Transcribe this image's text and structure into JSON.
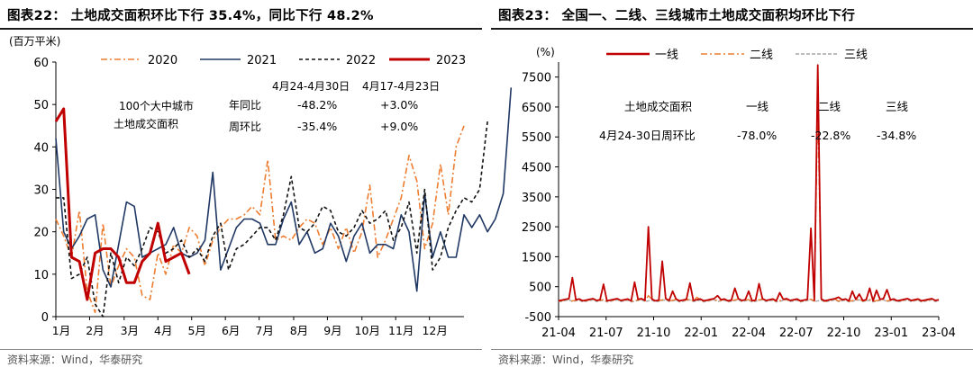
{
  "left": {
    "title": "图表22：  土地成交面积环比下行 35.4%，同比下行 48.2%",
    "source": "资料来源：Wind，华泰研究",
    "chart_data": {
      "type": "line",
      "ylabel": "(百万平米)",
      "ylim": [
        0,
        60
      ],
      "yticks": [
        0,
        10,
        20,
        30,
        40,
        50,
        60
      ],
      "xlim": [
        1,
        53
      ],
      "month_labels": [
        "1月",
        "2月",
        "3月",
        "4月",
        "5月",
        "6月",
        "7月",
        "8月",
        "9月",
        "10月",
        "11月",
        "12月"
      ],
      "month_weeks": [
        1,
        5.3,
        9.7,
        14,
        18.3,
        22.6,
        26.9,
        31.3,
        35.6,
        40,
        44.3,
        48.6
      ],
      "legend": [
        "2020",
        "2021",
        "2022",
        "2023"
      ],
      "series": [
        {
          "name": "2020",
          "color": "#ED7D31",
          "dash": "7,3,2,3",
          "width": 1.6,
          "values": [
            23,
            19,
            14,
            25,
            6,
            1,
            22,
            7,
            12,
            16,
            14,
            5,
            4,
            15,
            10,
            17,
            15,
            21,
            19,
            12,
            18,
            21,
            23,
            23,
            24,
            26,
            24,
            37,
            18,
            19,
            18,
            21,
            23,
            22,
            17,
            21,
            16,
            21,
            15,
            20,
            31,
            14,
            18,
            23,
            28,
            38,
            32,
            16,
            22,
            36,
            24,
            40,
            45
          ]
        },
        {
          "name": "2021",
          "color": "#203864",
          "dash": "",
          "width": 1.6,
          "values": [
            42,
            20,
            16,
            19,
            23,
            24,
            11,
            7,
            17,
            27,
            26,
            14,
            15,
            16,
            17,
            21,
            15,
            14,
            15,
            18,
            34,
            11,
            16,
            21,
            23,
            23,
            22,
            17,
            17,
            23,
            27,
            17,
            20,
            15,
            16,
            22,
            19,
            13,
            19,
            22,
            15,
            17,
            17,
            16,
            24,
            20,
            6,
            29,
            14,
            20,
            14,
            14,
            24,
            21,
            24,
            20,
            23,
            29,
            54
          ]
        },
        {
          "name": "2022",
          "color": "#111111",
          "dash": "4,3",
          "width": 1.6,
          "values": [
            28,
            28,
            9,
            10,
            14,
            3,
            0,
            15,
            8,
            14,
            12,
            16,
            21,
            20,
            15,
            16,
            18,
            14,
            16,
            13,
            19,
            22,
            11,
            16,
            17,
            19,
            21,
            21,
            18,
            24,
            33,
            21,
            20,
            22,
            26,
            25,
            20,
            19,
            21,
            25,
            22,
            23,
            25,
            18,
            21,
            27,
            15,
            30,
            11,
            14,
            21,
            25,
            28,
            27,
            30,
            46
          ]
        },
        {
          "name": "2023",
          "color": "#C00000",
          "dash": "",
          "width": 3,
          "values": [
            46,
            49,
            14,
            13,
            4,
            15,
            16,
            16,
            14,
            8,
            8,
            13,
            15,
            22,
            13,
            14,
            15,
            10
          ]
        }
      ],
      "table": {
        "row_label_1": "100个大中城市",
        "row_label_2": "土地成交面积",
        "col_1": "4月24-4月30日",
        "col_2": "4月17-4月23日",
        "rows": [
          {
            "label": "年同比",
            "v1": "-48.2%",
            "v2": "+3.0%"
          },
          {
            "label": "周环比",
            "v1": "-35.4%",
            "v2": "+9.0%"
          }
        ]
      }
    }
  },
  "right": {
    "title": "图表23：  全国一、二线、三线城市土地成交面积均环比下行",
    "source": "资料来源：Wind，华泰研究",
    "chart_data": {
      "type": "line",
      "ylabel": "(%)",
      "ylim": [
        -500,
        8000
      ],
      "yticks": [
        -500,
        500,
        1500,
        2500,
        3500,
        4500,
        5500,
        6500,
        7500
      ],
      "xticks": [
        "21-04",
        "21-07",
        "21-10",
        "22-01",
        "22-04",
        "22-07",
        "22-10",
        "23-01",
        "23-04"
      ],
      "legend": [
        "一线",
        "二线",
        "三线"
      ],
      "spikes": [
        {
          "week": 4,
          "value": 800
        },
        {
          "week": 13,
          "value": 580
        },
        {
          "week": 22,
          "value": 650
        },
        {
          "week": 26,
          "value": 2500
        },
        {
          "week": 30,
          "value": 1350
        },
        {
          "week": 33,
          "value": 350
        },
        {
          "week": 38,
          "value": 620
        },
        {
          "week": 46,
          "value": 200
        },
        {
          "week": 51,
          "value": 450
        },
        {
          "week": 55,
          "value": 350
        },
        {
          "week": 58,
          "value": 600
        },
        {
          "week": 64,
          "value": 300
        },
        {
          "week": 73,
          "value": 2450
        },
        {
          "week": 75,
          "value": 7900
        },
        {
          "week": 81,
          "value": 150
        },
        {
          "week": 85,
          "value": 350
        },
        {
          "week": 87,
          "value": 250
        },
        {
          "week": 90,
          "value": 450
        },
        {
          "week": 92,
          "value": 380
        },
        {
          "week": 95,
          "value": 400
        }
      ],
      "series2_spikes": [
        {
          "week": 75,
          "value": 6700
        },
        {
          "week": 26,
          "value": 200
        },
        {
          "week": 40,
          "value": 150
        }
      ],
      "table": {
        "label": "土地成交面积",
        "headers": [
          "一线",
          "二线",
          "三线"
        ],
        "row_label": "4月24-30日周环比",
        "values": [
          "-78.0%",
          "-22.8%",
          "-34.8%"
        ]
      }
    }
  }
}
